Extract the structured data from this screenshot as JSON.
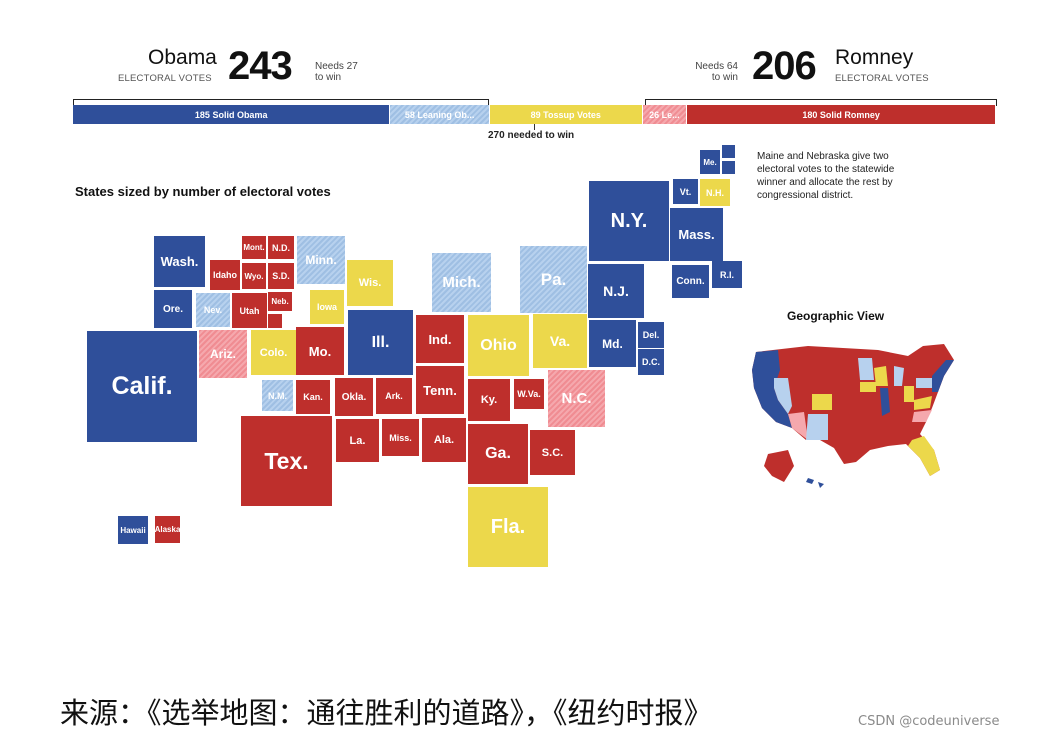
{
  "header": {
    "obama": {
      "name": "Obama",
      "sub": "ELECTORAL VOTES",
      "votes": "243",
      "needs": [
        "Needs 27",
        "to win"
      ]
    },
    "romney": {
      "name": "Romney",
      "sub": "ELECTORAL VOTES",
      "votes": "206",
      "needs": [
        "Needs 64",
        "to win"
      ]
    },
    "threshold": "270 needed to win"
  },
  "bar": [
    {
      "label": "185 Solid Obama",
      "value": 185,
      "cat": "so"
    },
    {
      "label": "58 Leaning Ob...",
      "value": 58,
      "cat": "lo"
    },
    {
      "label": "89 Tossup Votes",
      "value": 89,
      "cat": "tu"
    },
    {
      "label": "26 Le...",
      "value": 26,
      "cat": "lr"
    },
    {
      "label": "180 Solid Romney",
      "value": 180,
      "cat": "sr"
    }
  ],
  "legend_colors": {
    "solid_obama": "#2f4f9a",
    "leaning_obama": "#a8c6e8",
    "tossup": "#ecd84b",
    "leaning_romney": "#f39aa0",
    "solid_romney": "#be2f2c"
  },
  "cartogram_title": "States sized by number of electoral votes",
  "note": "Maine and Nebraska give two electoral votes to the statewide winner and allocate the rest by congressional district.",
  "geo_title": "Geographic View",
  "footer": "来源：《选举地图：通往胜利的道路》，《纽约时报》",
  "credit": "CSDN @codeuniverse",
  "states": [
    {
      "label": "Calif.",
      "cat": "so"
    },
    {
      "label": "Wash.",
      "cat": "so"
    },
    {
      "label": "Ore.",
      "cat": "so"
    },
    {
      "label": "Nev.",
      "cat": "lo"
    },
    {
      "label": "Idaho",
      "cat": "sr"
    },
    {
      "label": "Utah",
      "cat": "sr"
    },
    {
      "label": "Ariz.",
      "cat": "lr"
    },
    {
      "label": "Mont.",
      "cat": "sr"
    },
    {
      "label": "Wyo.",
      "cat": "sr"
    },
    {
      "label": "Colo.",
      "cat": "tu"
    },
    {
      "label": "N.M.",
      "cat": "lo"
    },
    {
      "label": "N.D.",
      "cat": "sr"
    },
    {
      "label": "S.D.",
      "cat": "sr"
    },
    {
      "label": "Neb.",
      "cat": "sr"
    },
    {
      "label": "Kan.",
      "cat": "sr"
    },
    {
      "label": "Okla.",
      "cat": "sr"
    },
    {
      "label": "Tex.",
      "cat": "sr"
    },
    {
      "label": "Minn.",
      "cat": "lo"
    },
    {
      "label": "Iowa",
      "cat": "tu"
    },
    {
      "label": "Mo.",
      "cat": "sr"
    },
    {
      "label": "Ark.",
      "cat": "sr"
    },
    {
      "label": "La.",
      "cat": "sr"
    },
    {
      "label": "Wis.",
      "cat": "tu"
    },
    {
      "label": "Ill.",
      "cat": "so"
    },
    {
      "label": "Miss.",
      "cat": "sr"
    },
    {
      "label": "Mich.",
      "cat": "lo"
    },
    {
      "label": "Ind.",
      "cat": "sr"
    },
    {
      "label": "Tenn.",
      "cat": "sr"
    },
    {
      "label": "Ala.",
      "cat": "sr"
    },
    {
      "label": "Ohio",
      "cat": "tu"
    },
    {
      "label": "Ky.",
      "cat": "sr"
    },
    {
      "label": "W.Va.",
      "cat": "sr"
    },
    {
      "label": "Ga.",
      "cat": "sr"
    },
    {
      "label": "S.C.",
      "cat": "sr"
    },
    {
      "label": "Fla.",
      "cat": "tu"
    },
    {
      "label": "N.C.",
      "cat": "lr"
    },
    {
      "label": "Va.",
      "cat": "tu"
    },
    {
      "label": "Pa.",
      "cat": "lo"
    },
    {
      "label": "N.Y.",
      "cat": "so"
    },
    {
      "label": "N.J.",
      "cat": "so"
    },
    {
      "label": "Md.",
      "cat": "so"
    },
    {
      "label": "Del.",
      "cat": "so"
    },
    {
      "label": "D.C.",
      "cat": "so"
    },
    {
      "label": "Vt.",
      "cat": "so"
    },
    {
      "label": "N.H.",
      "cat": "tu"
    },
    {
      "label": "Me.",
      "cat": "so"
    },
    {
      "label": "Mass.",
      "cat": "so"
    },
    {
      "label": "Conn.",
      "cat": "so"
    },
    {
      "label": "R.I.",
      "cat": "so"
    },
    {
      "label": "Hawaii",
      "cat": "so"
    },
    {
      "label": "Alaska",
      "cat": "sr"
    }
  ]
}
